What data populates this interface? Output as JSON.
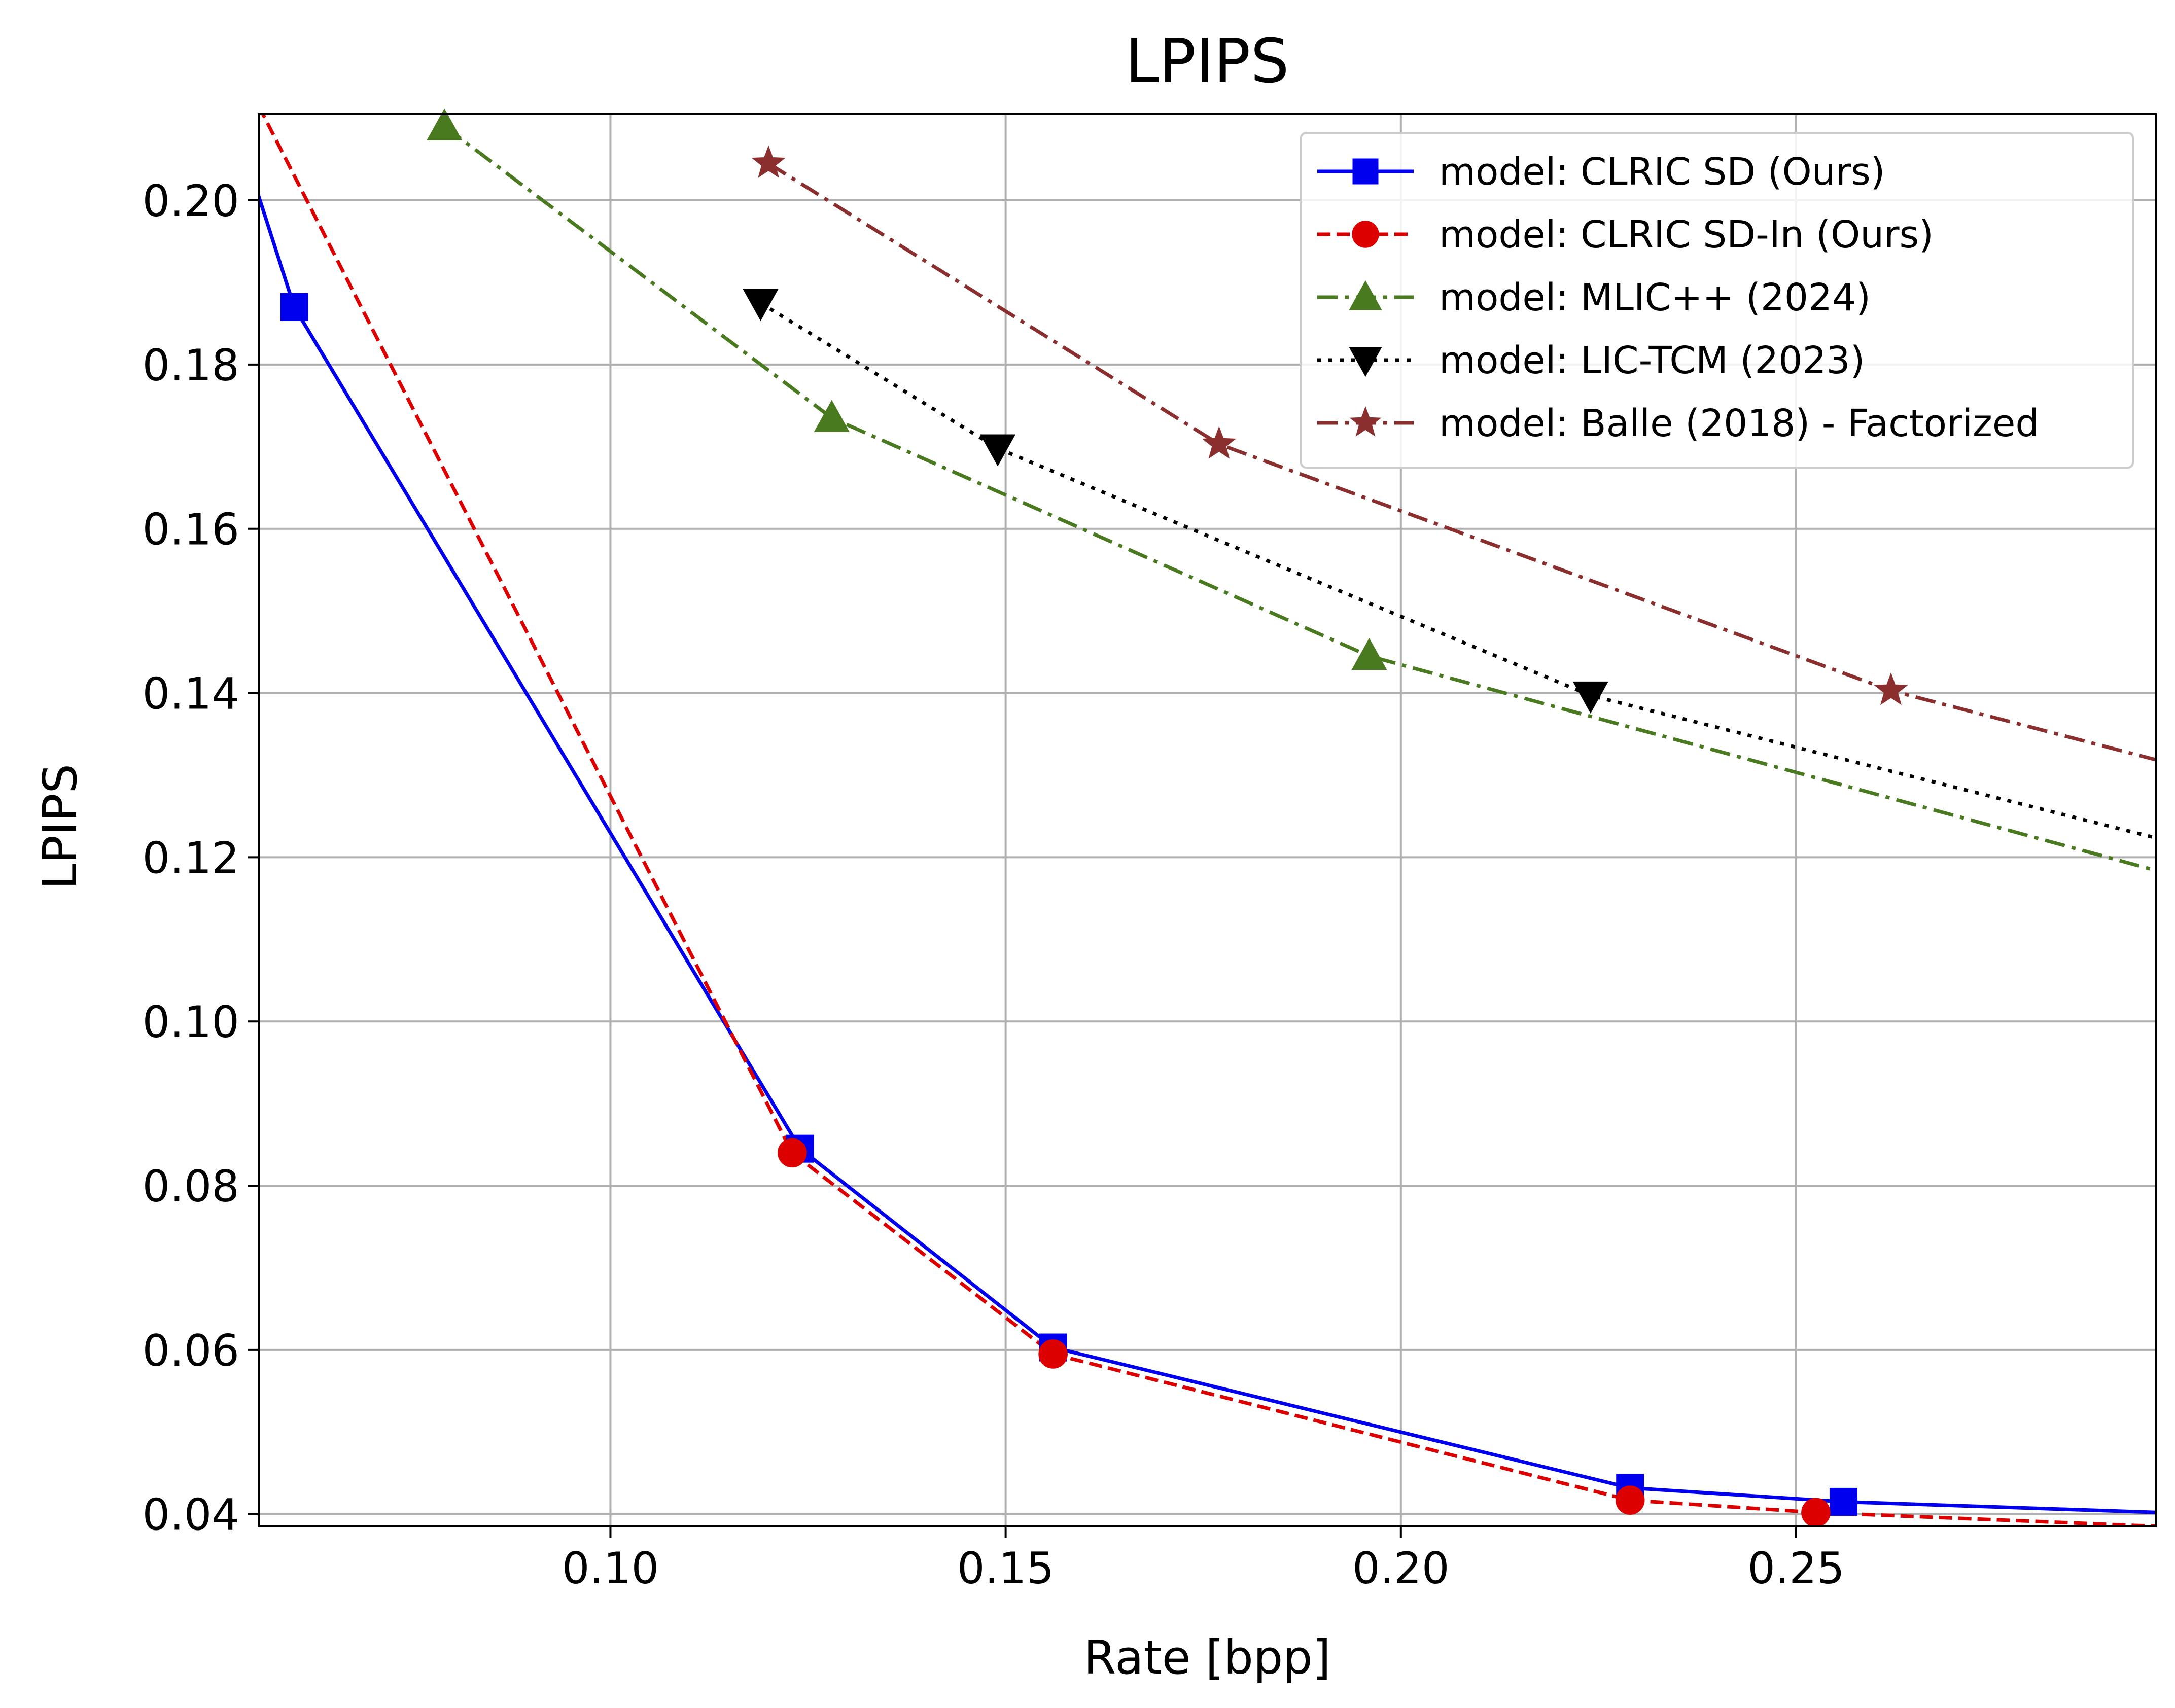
{
  "chart_data": {
    "type": "line",
    "title": "LPIPS",
    "xlabel": "Rate [bpp]",
    "ylabel": "LPIPS",
    "xlim": [
      0.0555,
      0.2955
    ],
    "ylim": [
      0.0385,
      0.2105
    ],
    "xticks": [
      0.1,
      0.15,
      0.2,
      0.25
    ],
    "xtick_labels": [
      "0.10",
      "0.15",
      "0.20",
      "0.25"
    ],
    "yticks": [
      0.04,
      0.06,
      0.08,
      0.1,
      0.12,
      0.14,
      0.16,
      0.18,
      0.2
    ],
    "ytick_labels": [
      "0.04",
      "0.06",
      "0.08",
      "0.10",
      "0.12",
      "0.14",
      "0.16",
      "0.18",
      "0.20"
    ],
    "grid": true,
    "legend_position": "top-right",
    "series": [
      {
        "name": "model:  CLRIC SD (Ours)",
        "color": "#0000ee",
        "marker": "square",
        "linestyle": "solid",
        "x": [
          0.0545,
          0.06,
          0.124,
          0.156,
          0.229,
          0.256,
          0.296
        ],
        "y": [
          0.2035,
          0.187,
          0.0845,
          0.0603,
          0.0432,
          0.0415,
          0.0402
        ]
      },
      {
        "name": "model:  CLRIC SD-In (Ours)",
        "color": "#dd0000",
        "marker": "circle",
        "linestyle": "dashed",
        "x": [
          0.0555,
          0.123,
          0.156,
          0.229,
          0.2525,
          0.296
        ],
        "y": [
          0.2115,
          0.084,
          0.0595,
          0.0417,
          0.0402,
          0.0385
        ]
      },
      {
        "name": "model: MLIC++ (2024)",
        "color": "#4a7a20",
        "marker": "triangle-up",
        "linestyle": "dashdot",
        "x": [
          0.079,
          0.128,
          0.196,
          0.297
        ],
        "y": [
          0.209,
          0.1735,
          0.1445,
          0.118
        ]
      },
      {
        "name": "model: LIC-TCM (2023)",
        "color": "#000000",
        "marker": "triangle-down",
        "linestyle": "dotted",
        "x": [
          0.119,
          0.149,
          0.224,
          0.297
        ],
        "y": [
          0.1875,
          0.1698,
          0.1397,
          0.122
        ]
      },
      {
        "name": "model: Balle (2018) - Factorized",
        "color": "#8b2e2e",
        "marker": "star",
        "linestyle": "dashdot",
        "x": [
          0.12,
          0.177,
          0.262,
          0.297
        ],
        "y": [
          0.2045,
          0.1703,
          0.1403,
          0.1315
        ]
      }
    ]
  }
}
